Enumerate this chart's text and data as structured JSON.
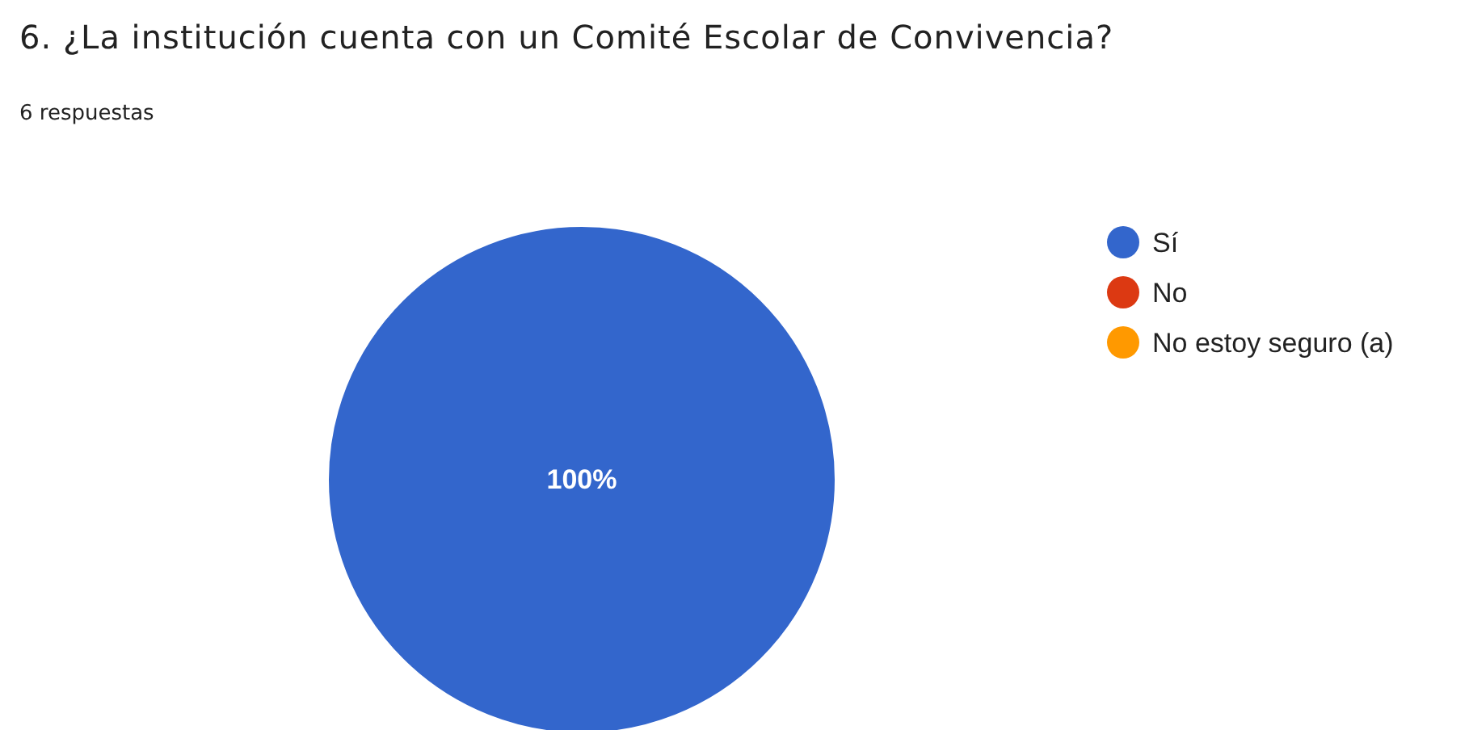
{
  "chart_data": {
    "type": "pie",
    "title": "6. ¿La institución cuenta con un Comité Escolar de Convivencia?",
    "subtitle": "6 respuestas",
    "categories": [
      "Sí",
      "No",
      "No estoy seguro (a)"
    ],
    "values": [
      100,
      0,
      0
    ],
    "colors": [
      "#3366cc",
      "#dc3912",
      "#ff9900"
    ],
    "value_labels": [
      "100%",
      null,
      null
    ],
    "legend": "right"
  }
}
